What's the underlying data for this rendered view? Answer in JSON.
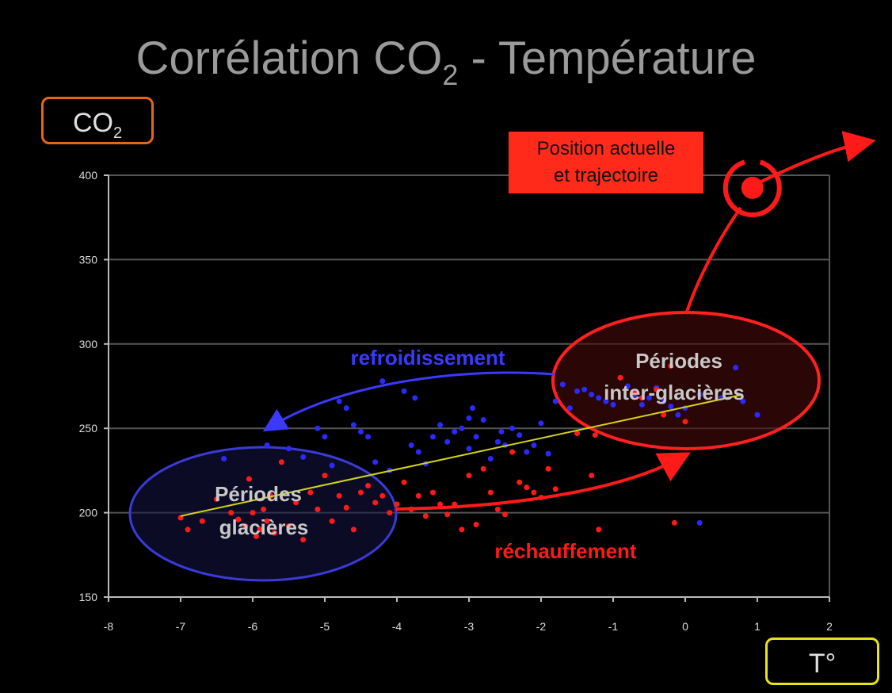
{
  "title_main": "Corrélation CO",
  "title_sub": "2",
  "title_rest": " - Température",
  "ylabel_main": "CO",
  "ylabel_sub": "2",
  "xlabel": "T°",
  "callout_line1": "Position actuelle",
  "callout_line2": "et trajectoire",
  "colors": {
    "background": "#000000",
    "grid": "#555555",
    "blue_series": "#2a2aff",
    "red_series": "#ff1a1a",
    "trend": "#d4d41a",
    "ylabel_border": "#e8641a",
    "xlabel_border": "#e8e31a",
    "callout_bg": "#ff2a1a"
  },
  "chart_data": {
    "type": "scatter",
    "xlim": [
      -8,
      2
    ],
    "ylim": [
      150,
      400
    ],
    "x_ticks": [
      "-8",
      "-7",
      "-6",
      "-5",
      "-4",
      "-3",
      "-2",
      "-1",
      "0",
      "1",
      "2"
    ],
    "y_ticks": [
      "150",
      "200",
      "250",
      "300",
      "350",
      "400"
    ],
    "grid": "horizontal",
    "annotations": {
      "cooling": "refroidissement",
      "warming": "réchauffement",
      "glacial_1": "Périodes",
      "glacial_2": "glacières",
      "interglacial_1": "Périodes",
      "interglacial_2": "inter-glacières"
    },
    "trend_line": [
      [
        -7,
        198
      ],
      [
        0.8,
        270
      ]
    ],
    "current_position": [
      0.8,
      385
    ],
    "series": [
      {
        "color": "blue",
        "points": [
          [
            -6.4,
            232
          ],
          [
            -5.8,
            240
          ],
          [
            -5.5,
            238
          ],
          [
            -5.3,
            233
          ],
          [
            -5.1,
            250
          ],
          [
            -5.0,
            245
          ],
          [
            -4.9,
            228
          ],
          [
            -4.8,
            266
          ],
          [
            -4.7,
            262
          ],
          [
            -4.6,
            252
          ],
          [
            -4.5,
            248
          ],
          [
            -4.4,
            245
          ],
          [
            -4.3,
            230
          ],
          [
            -4.2,
            278
          ],
          [
            -4.1,
            225
          ],
          [
            -3.9,
            272
          ],
          [
            -3.8,
            240
          ],
          [
            -3.7,
            236
          ],
          [
            -3.6,
            229
          ],
          [
            -3.5,
            245
          ],
          [
            -3.4,
            252
          ],
          [
            -3.3,
            242
          ],
          [
            -3.2,
            248
          ],
          [
            -3.1,
            250
          ],
          [
            -3.0,
            238
          ],
          [
            -2.95,
            262
          ],
          [
            -2.9,
            245
          ],
          [
            -2.8,
            255
          ],
          [
            -2.7,
            232
          ],
          [
            -2.6,
            242
          ],
          [
            -2.5,
            240
          ],
          [
            -2.4,
            250
          ],
          [
            -2.3,
            246
          ],
          [
            -2.2,
            236
          ],
          [
            -2.1,
            240
          ],
          [
            -2.0,
            253
          ],
          [
            -1.9,
            235
          ],
          [
            -1.8,
            266
          ],
          [
            -1.7,
            276
          ],
          [
            -1.6,
            262
          ],
          [
            -1.5,
            272
          ],
          [
            -1.4,
            273
          ],
          [
            -1.3,
            270
          ],
          [
            -1.2,
            268
          ],
          [
            -1.1,
            266
          ],
          [
            -1.0,
            264
          ],
          [
            -0.9,
            280
          ],
          [
            -0.8,
            275
          ],
          [
            -0.7,
            270
          ],
          [
            -0.6,
            264
          ],
          [
            -0.5,
            268
          ],
          [
            -0.4,
            274
          ],
          [
            -0.3,
            266
          ],
          [
            -0.2,
            263
          ],
          [
            -0.1,
            258
          ],
          [
            0.0,
            262
          ],
          [
            0.2,
            270
          ],
          [
            0.5,
            268
          ],
          [
            0.7,
            286
          ],
          [
            0.8,
            266
          ],
          [
            1.0,
            258
          ],
          [
            0.2,
            194
          ],
          [
            -3.0,
            256
          ],
          [
            -2.55,
            248
          ],
          [
            -3.75,
            268
          ]
        ]
      },
      {
        "color": "red",
        "points": [
          [
            -7.0,
            197
          ],
          [
            -6.9,
            190
          ],
          [
            -6.7,
            195
          ],
          [
            -6.5,
            208
          ],
          [
            -6.3,
            200
          ],
          [
            -6.2,
            196
          ],
          [
            -6.1,
            192
          ],
          [
            -6.0,
            200
          ],
          [
            -5.95,
            186
          ],
          [
            -5.9,
            190
          ],
          [
            -5.85,
            202
          ],
          [
            -5.8,
            195
          ],
          [
            -5.75,
            210
          ],
          [
            -5.7,
            188
          ],
          [
            -5.6,
            230
          ],
          [
            -5.5,
            192
          ],
          [
            -5.4,
            206
          ],
          [
            -5.3,
            184
          ],
          [
            -5.2,
            212
          ],
          [
            -5.1,
            202
          ],
          [
            -5.0,
            222
          ],
          [
            -4.9,
            195
          ],
          [
            -4.8,
            210
          ],
          [
            -4.7,
            203
          ],
          [
            -4.6,
            190
          ],
          [
            -4.5,
            212
          ],
          [
            -4.4,
            216
          ],
          [
            -4.3,
            206
          ],
          [
            -4.2,
            210
          ],
          [
            -4.1,
            200
          ],
          [
            -4.0,
            205
          ],
          [
            -3.9,
            218
          ],
          [
            -3.8,
            202
          ],
          [
            -3.7,
            210
          ],
          [
            -3.6,
            198
          ],
          [
            -3.5,
            212
          ],
          [
            -3.4,
            205
          ],
          [
            -3.3,
            199
          ],
          [
            -3.2,
            205
          ],
          [
            -3.1,
            190
          ],
          [
            -3.0,
            222
          ],
          [
            -2.9,
            193
          ],
          [
            -2.8,
            226
          ],
          [
            -2.7,
            212
          ],
          [
            -2.6,
            202
          ],
          [
            -2.5,
            199
          ],
          [
            -2.4,
            236
          ],
          [
            -2.3,
            218
          ],
          [
            -2.2,
            215
          ],
          [
            -2.1,
            212
          ],
          [
            -2.0,
            209
          ],
          [
            -1.9,
            226
          ],
          [
            -1.8,
            214
          ],
          [
            -1.5,
            247
          ],
          [
            -1.3,
            222
          ],
          [
            -1.25,
            246
          ],
          [
            -1.2,
            190
          ],
          [
            -0.9,
            280
          ],
          [
            -0.7,
            271
          ],
          [
            -0.6,
            268
          ],
          [
            -0.4,
            273
          ],
          [
            -0.3,
            258
          ],
          [
            -0.2,
            287
          ],
          [
            -0.15,
            194
          ],
          [
            0.0,
            254
          ],
          [
            -6.05,
            220
          ]
        ]
      }
    ]
  }
}
